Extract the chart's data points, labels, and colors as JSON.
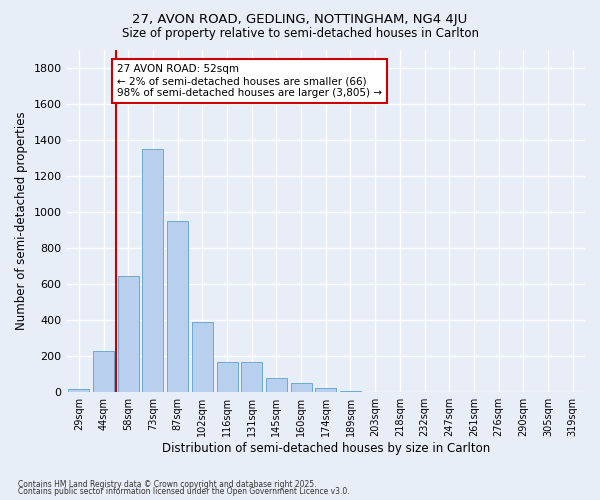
{
  "title1": "27, AVON ROAD, GEDLING, NOTTINGHAM, NG4 4JU",
  "title2": "Size of property relative to semi-detached houses in Carlton",
  "xlabel": "Distribution of semi-detached houses by size in Carlton",
  "ylabel": "Number of semi-detached properties",
  "categories": [
    "29sqm",
    "44sqm",
    "58sqm",
    "73sqm",
    "87sqm",
    "102sqm",
    "116sqm",
    "131sqm",
    "145sqm",
    "160sqm",
    "174sqm",
    "189sqm",
    "203sqm",
    "218sqm",
    "232sqm",
    "247sqm",
    "261sqm",
    "276sqm",
    "290sqm",
    "305sqm",
    "319sqm"
  ],
  "values": [
    20,
    230,
    645,
    1350,
    950,
    390,
    165,
    165,
    80,
    50,
    25,
    5,
    2,
    1,
    0,
    0,
    0,
    0,
    0,
    0,
    0
  ],
  "bar_color": "#b8d0ee",
  "bar_edge_color": "#6aaad4",
  "background_color": "#e8eef8",
  "grid_color": "#ffffff",
  "vline_x": 1.5,
  "vline_color": "#cc0000",
  "annotation_text": "27 AVON ROAD: 52sqm\n← 2% of semi-detached houses are smaller (66)\n98% of semi-detached houses are larger (3,805) →",
  "annotation_box_color": "#ffffff",
  "annotation_box_edge": "#cc0000",
  "footnote1": "Contains HM Land Registry data © Crown copyright and database right 2025.",
  "footnote2": "Contains public sector information licensed under the Open Government Licence v3.0.",
  "ylim": [
    0,
    1900
  ],
  "yticks": [
    0,
    200,
    400,
    600,
    800,
    1000,
    1200,
    1400,
    1600,
    1800
  ]
}
